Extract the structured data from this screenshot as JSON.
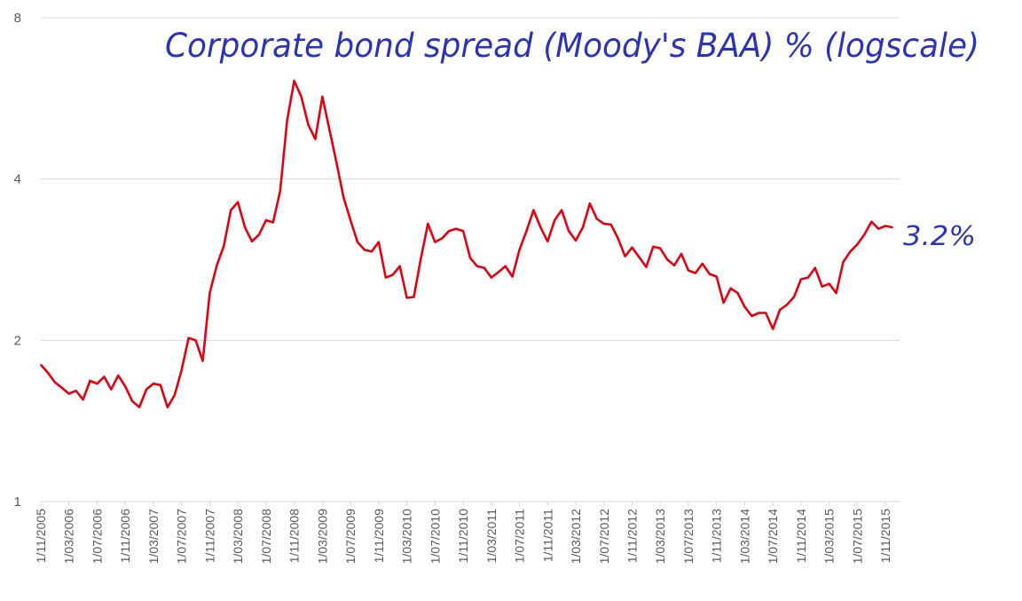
{
  "chart_data": {
    "type": "line",
    "title": "Corporate bond spread (Moody's BAA) % (logscale)",
    "end_annotation": "3.2%",
    "y_scale": "log2",
    "ylim": [
      1,
      8
    ],
    "y_ticks": [
      "1",
      "2",
      "4",
      "8"
    ],
    "grid": "horizontal",
    "x_tick_labels": [
      "1/11/2005",
      "1/03/2006",
      "1/07/2006",
      "1/11/2006",
      "1/03/2007",
      "1/07/2007",
      "1/11/2007",
      "1/03/2008",
      "1/07/2008",
      "1/11/2008",
      "1/03/2009",
      "1/07/2009",
      "1/11/2009",
      "1/03/2010",
      "1/07/2010",
      "1/11/2010",
      "1/03/2011",
      "1/07/2011",
      "1/11/2011",
      "1/03/2012",
      "1/07/2012",
      "1/11/2012",
      "1/03/2013",
      "1/07/2013",
      "1/11/2013",
      "1/03/2014",
      "1/07/2014",
      "1/11/2014",
      "1/03/2015",
      "1/07/2015",
      "1/11/2015"
    ],
    "series": [
      {
        "color": "#e3000f",
        "x_start": "2005-11",
        "x_end": "2016-01",
        "frequency": "monthly",
        "values": [
          1.8,
          1.74,
          1.67,
          1.63,
          1.59,
          1.61,
          1.55,
          1.68,
          1.66,
          1.71,
          1.62,
          1.72,
          1.64,
          1.54,
          1.5,
          1.62,
          1.66,
          1.65,
          1.5,
          1.58,
          1.76,
          2.02,
          2.0,
          1.83,
          2.45,
          2.76,
          3.0,
          3.5,
          3.62,
          3.25,
          3.06,
          3.15,
          3.35,
          3.32,
          3.8,
          5.15,
          6.1,
          5.7,
          5.05,
          4.75,
          5.7,
          4.95,
          4.3,
          3.7,
          3.35,
          3.05,
          2.95,
          2.93,
          3.05,
          2.62,
          2.65,
          2.75,
          2.4,
          2.41,
          2.85,
          3.3,
          3.05,
          3.1,
          3.2,
          3.23,
          3.2,
          2.85,
          2.75,
          2.73,
          2.62,
          2.68,
          2.75,
          2.63,
          2.95,
          3.2,
          3.5,
          3.25,
          3.06,
          3.35,
          3.5,
          3.2,
          3.07,
          3.25,
          3.6,
          3.37,
          3.3,
          3.29,
          3.1,
          2.87,
          2.98,
          2.86,
          2.74,
          2.99,
          2.97,
          2.83,
          2.76,
          2.9,
          2.7,
          2.67,
          2.78,
          2.66,
          2.63,
          2.35,
          2.5,
          2.45,
          2.31,
          2.22,
          2.25,
          2.25,
          2.1,
          2.28,
          2.33,
          2.41,
          2.6,
          2.62,
          2.73,
          2.52,
          2.55,
          2.45,
          2.8,
          2.93,
          3.02,
          3.15,
          3.33,
          3.23,
          3.27,
          3.25
        ]
      }
    ]
  }
}
